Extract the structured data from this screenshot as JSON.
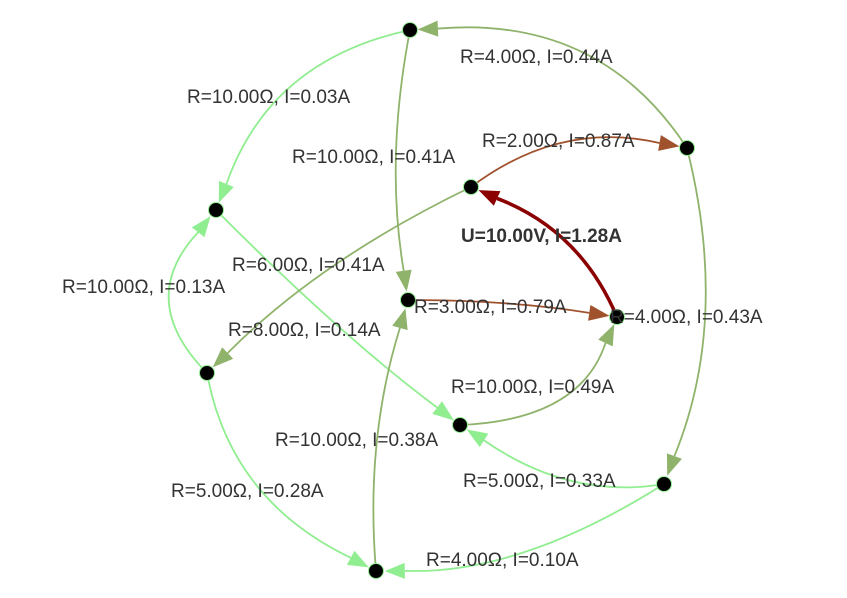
{
  "nodes": [
    "n0",
    "n1",
    "n2",
    "n3",
    "n4",
    "n5",
    "n6",
    "n7",
    "n8",
    "n9"
  ],
  "edges": [
    {
      "id": "e-n0-n1",
      "from": "n0",
      "to": "n1",
      "label": "R=10.00Ω, I=0.03A",
      "color": "#90ee90"
    },
    {
      "id": "e-n0-n4",
      "from": "n0",
      "to": "n4",
      "label": "R=10.00Ω, I=0.41A",
      "color": "#8fb36b"
    },
    {
      "id": "e-n2-n0",
      "from": "n2",
      "to": "n0",
      "label": "R=4.00Ω, I=0.44A",
      "color": "#8fb36b"
    },
    {
      "id": "e-n3-n2",
      "from": "n3",
      "to": "n2",
      "label": "R=2.00Ω, I=0.87A",
      "color": "#a0522d"
    },
    {
      "id": "e-n6-n3",
      "from": "n6",
      "to": "n3",
      "label": "U=10.00V, I=1.28A",
      "color": "#8b0000",
      "source": true
    },
    {
      "id": "e-n2-n8",
      "from": "n2",
      "to": "n8",
      "label": "R=4.00Ω, I=0.43A",
      "color": "#8fb36b"
    },
    {
      "id": "e-n1-n7",
      "from": "n1",
      "to": "n7",
      "label": "R=6.00Ω, I=0.41A",
      "color": "#90ee90"
    },
    {
      "id": "e-n3-n5",
      "from": "n3",
      "to": "n5",
      "label": "R=8.00Ω, I=0.14A",
      "color": "#8fb36b"
    },
    {
      "id": "e-n5-n1",
      "from": "n5",
      "to": "n1",
      "label": "R=10.00Ω, I=0.13A",
      "color": "#90ee90"
    },
    {
      "id": "e-n4-n6",
      "from": "n4",
      "to": "n6",
      "label": "R=3.00Ω, I=0.79A",
      "color": "#a0522d"
    },
    {
      "id": "e-n7-n6",
      "from": "n7",
      "to": "n6",
      "label": "R=10.00Ω, I=0.49A",
      "color": "#8fb36b"
    },
    {
      "id": "e-n9-n4",
      "from": "n9",
      "to": "n4",
      "label": "R=10.00Ω, I=0.38A",
      "color": "#8fb36b"
    },
    {
      "id": "e-n8-n7",
      "from": "n8",
      "to": "n7",
      "label": "R=5.00Ω, I=0.33A",
      "color": "#90ee90"
    },
    {
      "id": "e-n5-n9",
      "from": "n5",
      "to": "n9",
      "label": "R=5.00Ω, I=0.28A",
      "color": "#90ee90"
    },
    {
      "id": "e-n8-n9",
      "from": "n8",
      "to": "n9",
      "label": "R=4.00Ω, I=0.10A",
      "color": "#90ee90"
    }
  ],
  "colors": {
    "node": "#000000",
    "source_edge": "#8b0000",
    "high_current": "#a0522d",
    "mid_current": "#8fb36b",
    "low_current": "#90ee90",
    "label_text": "#333333"
  }
}
